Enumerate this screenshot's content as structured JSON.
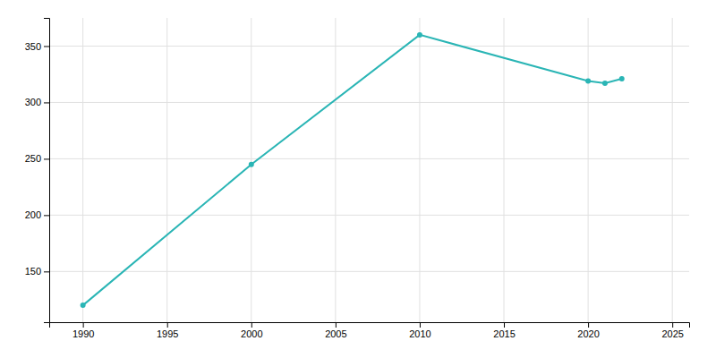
{
  "chart_data": {
    "type": "line",
    "x": [
      1990,
      2000,
      2010,
      2020,
      2021,
      2022
    ],
    "values": [
      120,
      245,
      360,
      319,
      317,
      321
    ],
    "color": "#2ab5b5",
    "marker": "circle",
    "xlim": [
      1988,
      2026
    ],
    "ylim": [
      105,
      375
    ],
    "xticks": [
      1990,
      1995,
      2000,
      2005,
      2010,
      2015,
      2020,
      2025
    ],
    "yticks": [
      150,
      200,
      250,
      300,
      350
    ],
    "grid": true
  }
}
